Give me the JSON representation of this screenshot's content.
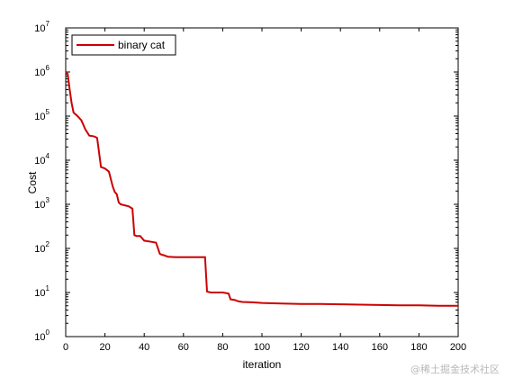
{
  "chart_data": {
    "type": "line",
    "xlabel": "iteration",
    "ylabel": "Cost",
    "xlim": [
      0,
      200
    ],
    "ylim": [
      1,
      10000000
    ],
    "yscale": "log",
    "grid": false,
    "legend_position": "top-left",
    "x_ticks": [
      "0",
      "20",
      "40",
      "60",
      "80",
      "100",
      "120",
      "140",
      "160",
      "180",
      "200"
    ],
    "y_ticks": [
      {
        "base": "10",
        "exp": "0"
      },
      {
        "base": "10",
        "exp": "1"
      },
      {
        "base": "10",
        "exp": "2"
      },
      {
        "base": "10",
        "exp": "3"
      },
      {
        "base": "10",
        "exp": "4"
      },
      {
        "base": "10",
        "exp": "5"
      },
      {
        "base": "10",
        "exp": "6"
      },
      {
        "base": "10",
        "exp": "7"
      }
    ],
    "series": [
      {
        "name": "binary cat",
        "color": "#cc0000",
        "x": [
          0,
          1,
          2,
          3,
          4,
          5,
          6,
          8,
          10,
          12,
          14,
          15,
          16,
          18,
          20,
          21,
          22,
          24,
          25,
          26,
          27,
          28,
          30,
          32,
          33,
          34,
          35,
          36,
          38,
          40,
          42,
          44,
          46,
          47,
          48,
          49,
          50,
          52,
          54,
          56,
          58,
          60,
          62,
          64,
          66,
          68,
          70,
          71,
          72,
          74,
          78,
          80,
          83,
          84,
          86,
          88,
          90,
          95,
          100,
          110,
          120,
          130,
          140,
          150,
          160,
          170,
          180,
          190,
          195,
          200
        ],
        "y": [
          1000000,
          900000,
          400000,
          200000,
          120000,
          110000,
          100000,
          80000,
          50000,
          36000,
          35000,
          34000,
          32000,
          7000,
          6500,
          6000,
          5500,
          2500,
          1900,
          1700,
          1100,
          1000,
          950,
          900,
          850,
          800,
          200,
          190,
          190,
          150,
          145,
          140,
          135,
          100,
          75,
          72,
          70,
          65,
          64,
          63,
          63,
          63,
          63,
          63,
          63,
          63,
          63,
          63,
          10.5,
          10,
          10,
          10,
          9.5,
          7,
          6.8,
          6.3,
          6.1,
          6,
          5.8,
          5.6,
          5.5,
          5.5,
          5.4,
          5.3,
          5.2,
          5.1,
          5.1,
          5.0,
          5.0,
          5.0
        ]
      }
    ]
  },
  "watermark": "@稀土掘金技术社区"
}
